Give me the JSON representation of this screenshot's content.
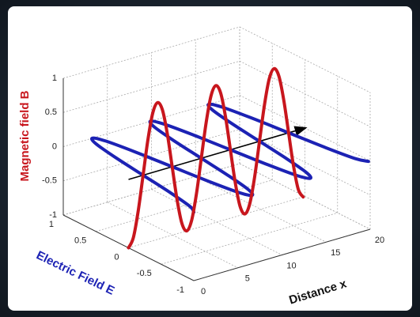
{
  "chart_data": {
    "type": "line3d",
    "x": [
      0,
      0.55,
      1.1,
      1.65,
      2.2,
      2.75,
      3.3,
      3.85,
      4.4,
      4.95,
      5.5,
      6.05,
      6.6,
      7.15,
      7.7,
      8.25,
      8.8,
      9.35,
      9.9,
      10.45,
      11,
      11.55,
      12.1,
      12.65,
      13.2,
      13.75,
      14.3,
      14.85,
      15.4,
      15.95,
      16.5,
      17.05,
      17.6,
      18.15,
      18.7,
      19.25,
      19.8
    ],
    "series": [
      {
        "name": "Electric Field E",
        "color": "#1c22b4",
        "axis": "y",
        "values": [
          -1,
          -0.87,
          -0.5,
          0,
          0.5,
          0.87,
          1,
          0.87,
          0.5,
          0,
          -0.5,
          -0.87,
          -1,
          -0.87,
          -0.5,
          0,
          0.5,
          0.87,
          1,
          0.87,
          0.5,
          0,
          -0.5,
          -0.87,
          -1,
          -0.87,
          -0.5,
          0,
          0.5,
          0.87,
          1,
          0.87,
          0.5,
          0,
          -0.5,
          -0.87,
          -1
        ]
      },
      {
        "name": "Magnetic field B",
        "color": "#c8161d",
        "axis": "z",
        "values": [
          -1,
          -0.87,
          -0.5,
          0,
          0.5,
          0.87,
          1,
          0.87,
          0.5,
          0,
          -0.5,
          -0.87,
          -1,
          -0.87,
          -0.5,
          0,
          0.5,
          0.87,
          1,
          0.87,
          0.5,
          0,
          -0.5,
          -0.87,
          -1,
          -0.87,
          -0.5,
          0,
          0.5,
          0.87,
          1,
          0.87,
          0.5,
          0,
          -0.5,
          -0.87,
          -1
        ]
      }
    ],
    "xlabel": "Distance x",
    "xlim": [
      0,
      20
    ],
    "ylim": [
      -1,
      1
    ],
    "zlim": [
      -1,
      1
    ],
    "xticks": [
      0,
      5,
      10,
      15,
      20
    ],
    "yticks": [
      -1,
      -0.5,
      0,
      0.5,
      1
    ],
    "zticks": [
      -1,
      -0.5,
      0,
      0.5,
      1
    ],
    "grid": true
  }
}
